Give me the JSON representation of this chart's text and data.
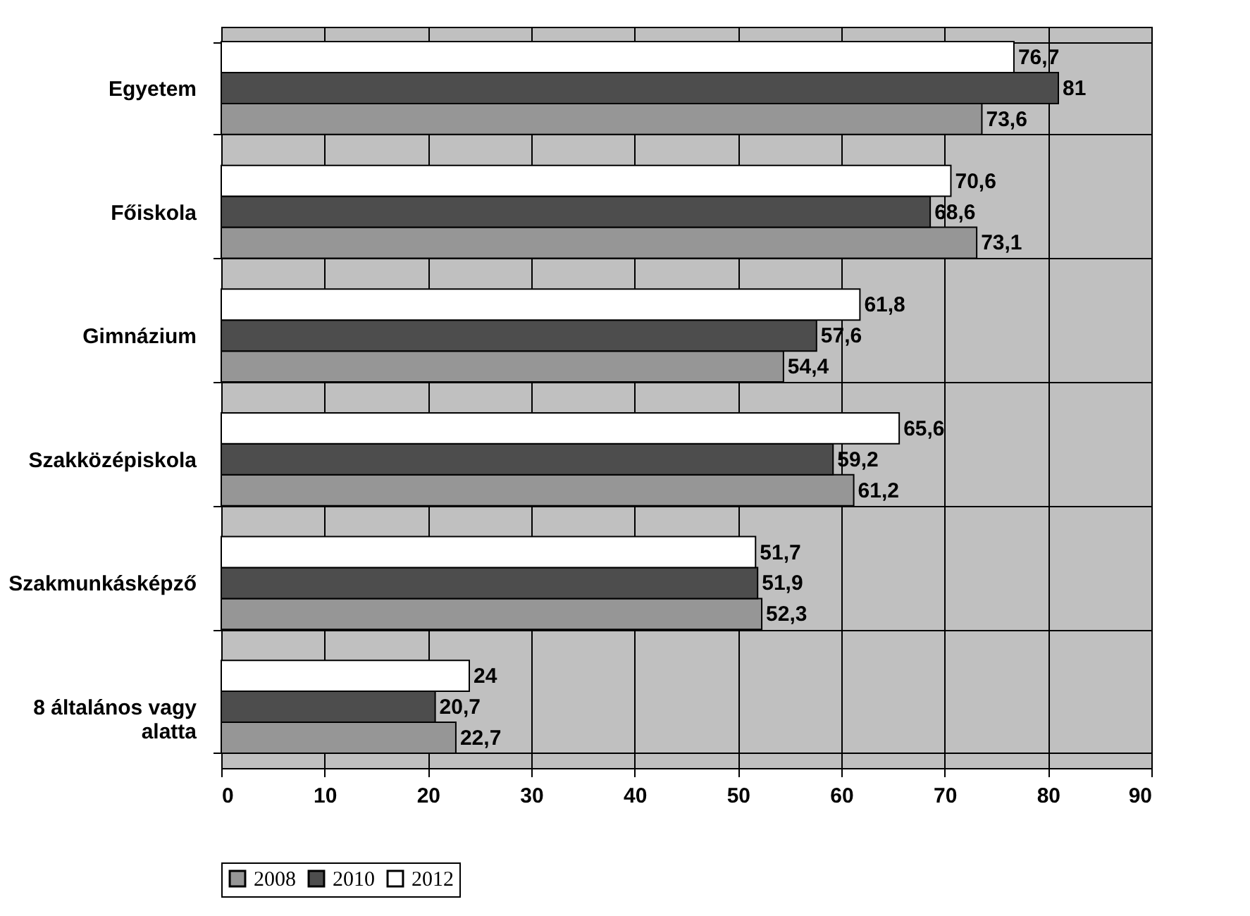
{
  "chart_data": {
    "type": "bar",
    "orientation": "horizontal",
    "categories": [
      "Egyetem",
      "Főiskola",
      "Gimnázium",
      "Szakközépiskola",
      "Szakmunkásképző",
      "8 általános vagy alatta"
    ],
    "series": [
      {
        "name": "2008",
        "color": "#969696",
        "values": [
          73.6,
          73.1,
          54.4,
          61.2,
          52.3,
          22.7
        ],
        "value_labels": [
          "73,6",
          "73,1",
          "54,4",
          "61,2",
          "52,3",
          "22,7"
        ]
      },
      {
        "name": "2010",
        "color": "#4d4d4d",
        "values": [
          81,
          68.6,
          57.6,
          59.2,
          51.9,
          20.7
        ],
        "value_labels": [
          "81",
          "68,6",
          "57,6",
          "59,2",
          "51,9",
          "20,7"
        ]
      },
      {
        "name": "2012",
        "color": "#ffffff",
        "values": [
          76.7,
          70.6,
          61.8,
          65.6,
          51.7,
          24
        ],
        "value_labels": [
          "76,7",
          "70,6",
          "61,8",
          "65,6",
          "51,7",
          "24"
        ]
      }
    ],
    "xlim": [
      0,
      90
    ],
    "xticks": [
      0,
      10,
      20,
      30,
      40,
      50,
      60,
      70,
      80,
      90
    ],
    "grid": true,
    "legend": "bottom"
  }
}
